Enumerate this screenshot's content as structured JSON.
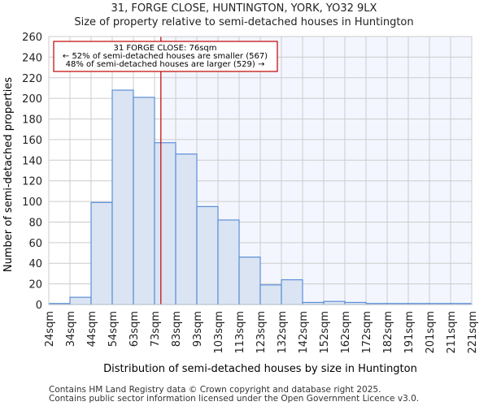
{
  "chart_data": {
    "type": "bar",
    "title": "31, FORGE CLOSE, HUNTINGTON, YORK, YO32 9LX",
    "subtitle": "Size of property relative to semi-detached houses in Huntington",
    "xlabel": "Distribution of semi-detached houses by size in Huntington",
    "ylabel": "Number of semi-detached properties",
    "ylim": [
      0,
      260
    ],
    "yticks": [
      0,
      20,
      40,
      60,
      80,
      100,
      120,
      140,
      160,
      180,
      200,
      220,
      240,
      260
    ],
    "bin_edges_labels": [
      "24sqm",
      "34sqm",
      "44sqm",
      "54sqm",
      "63sqm",
      "73sqm",
      "83sqm",
      "93sqm",
      "103sqm",
      "113sqm",
      "123sqm",
      "132sqm",
      "142sqm",
      "152sqm",
      "162sqm",
      "172sqm",
      "182sqm",
      "191sqm",
      "201sqm",
      "211sqm",
      "221sqm"
    ],
    "values": [
      1,
      7,
      99,
      208,
      201,
      157,
      146,
      95,
      82,
      46,
      19,
      24,
      2,
      3,
      2,
      1,
      1,
      1,
      1,
      1
    ],
    "grid": true,
    "marker": {
      "value_sqm": 76,
      "bin_position": 5.3,
      "color": "#c00000"
    },
    "annotation": {
      "line1": "31 FORGE CLOSE: 76sqm",
      "line2": "← 52% of semi-detached houses are smaller (567)",
      "line3": "48% of semi-detached houses are larger (529) →"
    },
    "colors": {
      "bar_fill": "#dae4f3",
      "bar_stroke": "#5b8fd6",
      "highlight_bg": "#f3f6fe"
    }
  },
  "footer": {
    "line1": "Contains HM Land Registry data © Crown copyright and database right 2025.",
    "line2": "Contains public sector information licensed under the Open Government Licence v3.0."
  }
}
